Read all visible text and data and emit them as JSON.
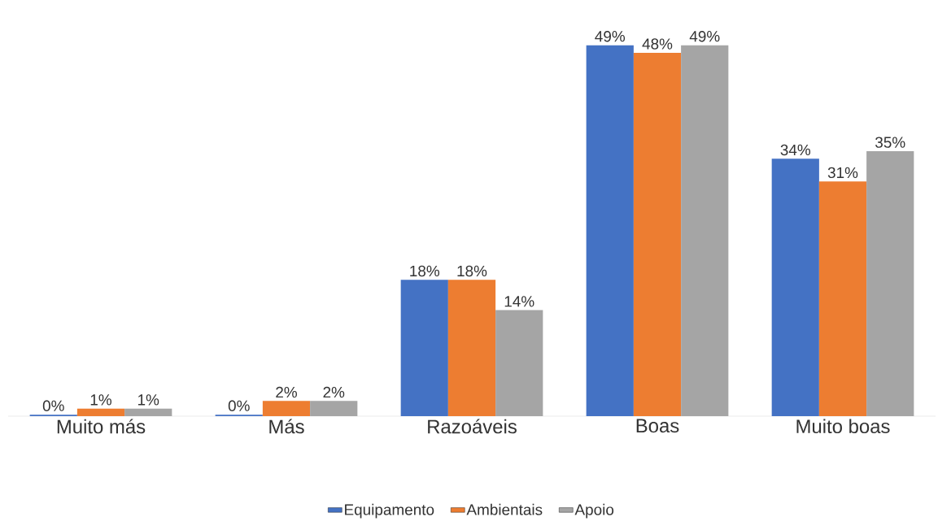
{
  "chart_data": {
    "type": "bar",
    "categories": [
      "Muito más",
      "Más",
      "Razoáveis",
      "Boas",
      "Muito boas"
    ],
    "series": [
      {
        "name": "Equipamento",
        "color": "#4472c4",
        "values": [
          0.2,
          0.2,
          18,
          49,
          34
        ],
        "value_labels": [
          "0%",
          "0%",
          "18%",
          "49%",
          "34%"
        ]
      },
      {
        "name": "Ambientais",
        "color": "#ed7d31",
        "values": [
          1,
          2,
          18,
          48,
          31
        ],
        "value_labels": [
          "1%",
          "2%",
          "18%",
          "48%",
          "31%"
        ]
      },
      {
        "name": "Apoio",
        "color": "#a5a5a5",
        "values": [
          1,
          2,
          14,
          49,
          35
        ],
        "value_labels": [
          "1%",
          "2%",
          "14%",
          "49%",
          "35%"
        ]
      }
    ],
    "legend": "bottom"
  }
}
